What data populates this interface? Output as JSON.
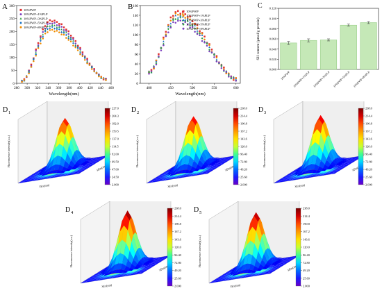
{
  "panels": {
    "A": {
      "letter": "A",
      "chart_data": {
        "type": "scatter",
        "xlabel": "Wavelength(nm)",
        "ylabel": "",
        "xlim": [
          280,
          460
        ],
        "ylim": [
          0,
          300
        ],
        "xticks": [
          "280",
          "300",
          "320",
          "340",
          "360",
          "380",
          "400",
          "420",
          "440",
          "460"
        ],
        "yticks": [
          "0",
          "50",
          "100",
          "150",
          "200",
          "250",
          "300"
        ],
        "legend_position": "top-left",
        "series": [
          {
            "name": "10%PWP",
            "color": "#e03131",
            "marker": "square",
            "peak": 242
          },
          {
            "name": "10%PWP+1%PLP",
            "color": "#7d3fbf",
            "marker": "circle",
            "peak": 232
          },
          {
            "name": "10%PWP+3%PLP",
            "color": "#2f9e44",
            "marker": "triangle",
            "peak": 224
          },
          {
            "name": "10%PWP+5%PLP",
            "color": "#1971c2",
            "marker": "diamond",
            "peak": 215
          },
          {
            "name": "10%PWP+8%PLP",
            "color": "#f08c00",
            "marker": "circle",
            "peak": 205
          }
        ],
        "x_start": 290,
        "x_end": 450,
        "x_peak": 345,
        "y_end": 15
      }
    },
    "B": {
      "letter": "B",
      "chart_data": {
        "type": "scatter",
        "xlabel": "Wavelength(nm)",
        "ylabel": "",
        "xlim": [
          380,
          610
        ],
        "ylim": [
          0,
          160
        ],
        "xticks": [
          "400",
          "450",
          "500",
          "550",
          "600"
        ],
        "yticks": [
          "0",
          "20",
          "40",
          "60",
          "80",
          "100",
          "120",
          "140",
          "160"
        ],
        "legend_position": "top-right",
        "series": [
          {
            "name": "10%PWP",
            "color": "#e03131",
            "marker": "square",
            "peak": 147
          },
          {
            "name": "10%PWP+1%PLP",
            "color": "#f08c00",
            "marker": "circle",
            "peak": 142
          },
          {
            "name": "10%PWP+3%PLP",
            "color": "#1971c2",
            "marker": "triangle",
            "peak": 138
          },
          {
            "name": "10%PWP+5%PLP",
            "color": "#2f9e44",
            "marker": "diamond",
            "peak": 133
          },
          {
            "name": "10%PWP+8%PLP",
            "color": "#7d3fbf",
            "marker": "circle",
            "peak": 128
          }
        ],
        "x_start": 400,
        "x_end": 600,
        "x_peak": 465,
        "y_start": 22,
        "y_end": 8
      }
    },
    "C": {
      "letter": "C",
      "chart_data": {
        "type": "bar",
        "ylabel": "SH content (µmol/g protein)",
        "ylim": [
          0,
          0.12
        ],
        "yticks": [
          "0.000",
          "0.020",
          "0.040",
          "0.060",
          "0.080",
          "0.100",
          "0.120"
        ],
        "categories": [
          "10%PWP",
          "10%PWP+1%PLP",
          "10%PWP+3%PLP",
          "10%PWP+5%PLP",
          "10%PWP+8%PLP"
        ],
        "values": [
          0.052,
          0.057,
          0.058,
          0.087,
          0.092
        ],
        "errors": [
          0.003,
          0.003,
          0.002,
          0.002,
          0.002
        ],
        "bar_color": "#c5e8b7",
        "bar_edge": "#8cc77a"
      }
    }
  },
  "surface": {
    "colorbar_default": [
      "227.0",
      "204.3",
      "182.0",
      "159.5",
      "137.0",
      "114.5",
      "92.00",
      "69.50",
      "47.00",
      "24.50",
      "2.000"
    ],
    "colorbar_common": [
      "238.0",
      "214.4",
      "190.8",
      "167.2",
      "143.6",
      "120.0",
      "96.40",
      "72.80",
      "49.20",
      "25.60",
      "2.000"
    ],
    "zlabel": "Fluorescence intensity(a.u.)",
    "xlabel": "λEx(nm)",
    "ylabel": "λEm(nm)",
    "items": [
      {
        "letter": "D",
        "sub": "1",
        "ticks": "d",
        "peak": 0.85
      },
      {
        "letter": "D",
        "sub": "2",
        "ticks": "c",
        "peak": 0.88
      },
      {
        "letter": "D",
        "sub": "3",
        "ticks": "c",
        "peak": 0.9
      },
      {
        "letter": "D",
        "sub": "4",
        "ticks": "c",
        "peak": 0.98
      },
      {
        "letter": "D",
        "sub": "5",
        "ticks": "c",
        "peak": 0.95
      }
    ]
  }
}
